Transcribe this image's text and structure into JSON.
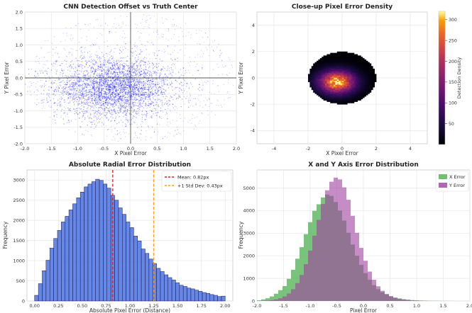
{
  "chart_data": [
    {
      "type": "scatter",
      "title": "CNN Detection Offset vs Truth Center",
      "xlabel": "X Pixel Error",
      "ylabel": "Y Pixel Error",
      "xlim": [
        -2.0,
        2.0
      ],
      "ylim": [
        -2.0,
        2.0
      ],
      "xticks": [
        "-2.0",
        "-1.5",
        "-1.0",
        "-0.5",
        "0.0",
        "0.5",
        "1.0",
        "1.5",
        "2.0"
      ],
      "yticks": [
        "-2.0",
        "-1.5",
        "-1.0",
        "-0.5",
        "0.0",
        "0.5",
        "1.0",
        "1.5",
        "2.0"
      ],
      "grid": true,
      "series": [
        {
          "color": "#0000ff",
          "distribution": {
            "x_mean": -0.3,
            "y_mean": -0.3,
            "x_std": 0.55,
            "y_std": 0.45,
            "extent_radius_x": 2.0,
            "extent_radius_y": 1.95
          },
          "x": [
            -0.3,
            -0.8,
            0.2,
            -1.2,
            0.6,
            -0.5,
            -1.6,
            1.0,
            -0.1,
            -0.9,
            0.4,
            -1.4,
            1.3,
            -0.3,
            -0.7,
            0.0,
            -1.0,
            0.8,
            -0.4,
            -1.8
          ],
          "y": [
            -0.3,
            -0.6,
            0.1,
            -0.2,
            -0.5,
            0.4,
            -0.1,
            0.3,
            -0.9,
            0.6,
            -1.0,
            0.5,
            -0.2,
            -1.3,
            1.0,
            0.8,
            -1.1,
            -0.8,
            1.4,
            0.2
          ]
        }
      ]
    },
    {
      "type": "heatmap",
      "title": "Close-up Pixel Error Density",
      "xlabel": "X Pixel Error",
      "ylabel": "Y Pixel Error",
      "xlim": [
        -5,
        5
      ],
      "ylim": [
        -5,
        5
      ],
      "xticks": [
        "-4",
        "-2",
        "0",
        "2",
        "4"
      ],
      "yticks": [
        "-4",
        "-2",
        "0",
        "2",
        "4"
      ],
      "grid": true,
      "colorbar": {
        "label": "Detection Density",
        "range": [
          0,
          320
        ],
        "ticks": [
          "50",
          "100",
          "150",
          "200",
          "250",
          "300"
        ],
        "colormap": "inferno"
      },
      "distribution": {
        "x_mean": -0.3,
        "y_mean": -0.3,
        "x_std": 0.55,
        "y_std": 0.45,
        "peak": 320,
        "extent_radius_x": 2.0,
        "extent_radius_y": 2.0
      }
    },
    {
      "type": "bar",
      "title": "Absolute Radial Error Distribution",
      "xlabel": "Absolute Pixel Error (Distance)",
      "ylabel": "Frequency",
      "xlim": [
        -0.08,
        2.08
      ],
      "ylim": [
        0,
        3250
      ],
      "xticks": [
        "0.00",
        "0.25",
        "0.50",
        "0.75",
        "1.00",
        "1.25",
        "1.50",
        "1.75",
        "2.00"
      ],
      "yticks": [
        "0",
        "500",
        "1000",
        "1500",
        "2000",
        "2500",
        "3000"
      ],
      "grid": true,
      "bar_color": "#4169e1",
      "bin_start": 0.0,
      "bin_width": 0.04,
      "values": [
        140,
        430,
        750,
        1010,
        1310,
        1550,
        1750,
        1960,
        2100,
        2260,
        2410,
        2560,
        2700,
        2830,
        2900,
        2960,
        3020,
        2990,
        2900,
        2800,
        2620,
        2500,
        2310,
        2150,
        1960,
        1820,
        1610,
        1490,
        1290,
        1180,
        1040,
        930,
        810,
        730,
        650,
        580,
        520,
        450,
        390,
        360,
        320,
        300,
        270,
        240,
        210,
        190,
        160,
        140,
        110,
        120
      ],
      "reference_lines": [
        {
          "name": "Mean: 0.82px",
          "x": 0.82,
          "color": "#e31a1c",
          "style": "dashed"
        },
        {
          "name": "+1 Std Dev: 0.43px",
          "x": 1.25,
          "color": "#ff9f1c",
          "style": "dashed"
        }
      ],
      "legend_position": "top-right"
    },
    {
      "type": "bar",
      "title": "X and Y Axis Error Distribution",
      "xlabel": "Pixel Error",
      "ylabel": "Frequency",
      "xlim": [
        -2.0,
        2.0
      ],
      "ylim": [
        0,
        5800
      ],
      "xticks": [
        "-2.0",
        "-1.5",
        "-1.0",
        "-0.5",
        "0.0",
        "0.5",
        "1.0",
        "1.5",
        "2.0"
      ],
      "yticks": [
        "0",
        "1000",
        "2000",
        "3000",
        "4000",
        "5000"
      ],
      "grid": true,
      "bin_start": -2.0,
      "bin_width": 0.08,
      "series": [
        {
          "name": "X Error",
          "color": "#4caf50",
          "values": [
            30,
            70,
            120,
            200,
            320,
            480,
            660,
            980,
            1380,
            1870,
            2380,
            2960,
            3490,
            3990,
            4280,
            4580,
            4710,
            4650,
            4380,
            4000,
            3560,
            3020,
            2500,
            2000,
            1600,
            1230,
            940,
            700,
            520,
            390,
            290,
            210,
            150,
            110,
            80,
            60,
            40,
            30,
            20,
            15,
            10,
            8,
            6,
            4,
            3,
            2,
            2,
            1,
            1,
            1
          ]
        },
        {
          "name": "Y Error",
          "color": "#a040a0",
          "values": [
            5,
            10,
            20,
            40,
            70,
            120,
            200,
            330,
            520,
            790,
            1150,
            1630,
            2230,
            2890,
            3590,
            4290,
            4900,
            5280,
            5460,
            5380,
            5030,
            4480,
            3770,
            3020,
            2350,
            1780,
            1300,
            940,
            650,
            450,
            310,
            210,
            140,
            90,
            60,
            40,
            25,
            15,
            10,
            6,
            4,
            3,
            2,
            1,
            1,
            1,
            0,
            0,
            0,
            0
          ]
        }
      ],
      "legend_position": "top-right"
    }
  ]
}
